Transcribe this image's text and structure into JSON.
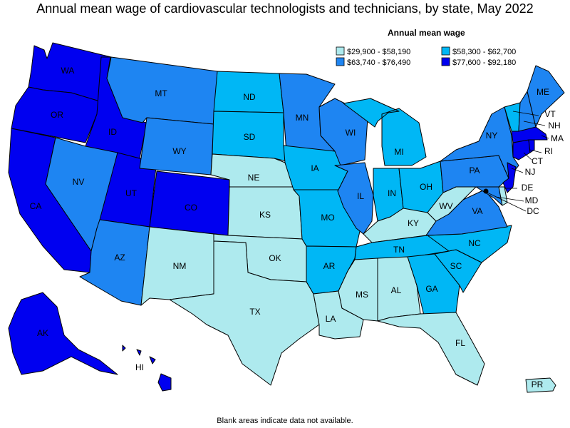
{
  "title": "Annual mean wage of cardiovascular technologists and technicians, by state, May 2022",
  "legend": {
    "title": "Annual mean wage",
    "bins": [
      {
        "label": "$29,900 - $58,190",
        "color": "#aeeaee"
      },
      {
        "label": "$58,300 - $62,700",
        "color": "#00b7f5"
      },
      {
        "label": "$63,740 - $76,490",
        "color": "#1e85f2"
      },
      {
        "label": "$77,600 - $92,180",
        "color": "#0000f0"
      }
    ]
  },
  "footnote": "Blank areas indicate data not available.",
  "states": {
    "WA": 3,
    "OR": 3,
    "CA": 3,
    "ID": 3,
    "UT": 3,
    "CO": 3,
    "AK": 3,
    "HI": 3,
    "NJ": 3,
    "CT": 3,
    "MA": 3,
    "RI": 3,
    "MT": 2,
    "WY": 2,
    "NV": 2,
    "AZ": 2,
    "MN": 2,
    "WI": 2,
    "IL": 2,
    "NY": 2,
    "PA": 2,
    "VA": 2,
    "ME": 2,
    "NH": 2,
    "MD": 2,
    "ND": 1,
    "SD": 1,
    "IA": 1,
    "MO": 1,
    "AR": 1,
    "MI": 1,
    "IN": 1,
    "OH": 1,
    "TN": 1,
    "NC": 1,
    "SC": 1,
    "GA": 1,
    "VT": 1,
    "DC": 1,
    "NE": 0,
    "KS": 0,
    "OK": 0,
    "TX": 0,
    "NM": 0,
    "LA": 0,
    "MS": 0,
    "AL": 0,
    "FL": 0,
    "KY": 0,
    "WV": 0,
    "DE": 0,
    "PR": 0
  }
}
